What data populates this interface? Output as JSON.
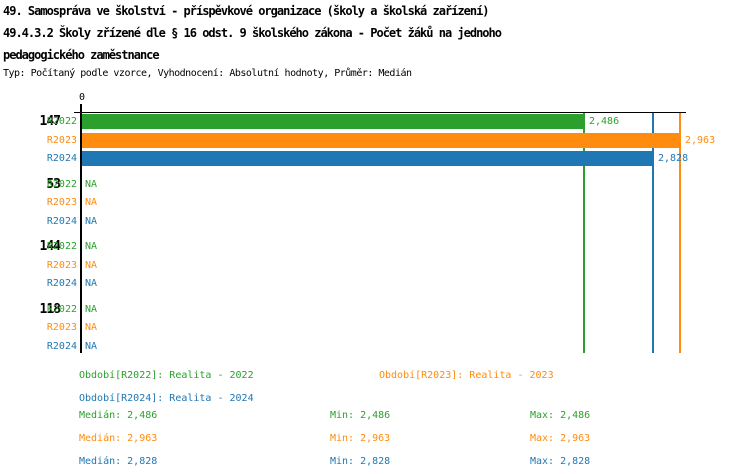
{
  "header": {
    "title_line1": "49. Samospráva ve školství - příspěvkové organizace (školy a školská zařízení)",
    "title_line2": "49.4.3.2 Školy zřízené dle § 16 odst. 9 školského zákona - Počet žáků na jednoho",
    "title_line3": "pedagogického zaměstnance",
    "subtitle": "Typ: Počítaný podle vzorce, Vyhodnocení: Absolutní hodnoty, Průměr: Medián"
  },
  "colors": {
    "R2022": "#2CA02C",
    "R2023": "#FF8C0E",
    "R2024": "#1F77B4",
    "axis": "#000000"
  },
  "chart_data": {
    "type": "bar",
    "orientation": "horizontal",
    "title": "49.4.3.2 Školy zřízené dle § 16 odst. 9 školského zákona - Počet žáků na jednoho pedagogického zaměstnance",
    "xlim": [
      0,
      3
    ],
    "axis_zero_label": "0",
    "na_label": "NA",
    "series_names": [
      "R2022",
      "R2023",
      "R2024"
    ],
    "groups": [
      {
        "label": "147",
        "rows": [
          {
            "series": "R2022",
            "value": 2.486,
            "display": "2,486"
          },
          {
            "series": "R2023",
            "value": 2.963,
            "display": "2,963"
          },
          {
            "series": "R2024",
            "value": 2.828,
            "display": "2,828"
          }
        ]
      },
      {
        "label": "53",
        "rows": [
          {
            "series": "R2022",
            "value": null,
            "display": "NA"
          },
          {
            "series": "R2023",
            "value": null,
            "display": "NA"
          },
          {
            "series": "R2024",
            "value": null,
            "display": "NA"
          }
        ]
      },
      {
        "label": "144",
        "rows": [
          {
            "series": "R2022",
            "value": null,
            "display": "NA"
          },
          {
            "series": "R2023",
            "value": null,
            "display": "NA"
          },
          {
            "series": "R2024",
            "value": null,
            "display": "NA"
          }
        ]
      },
      {
        "label": "118",
        "rows": [
          {
            "series": "R2022",
            "value": null,
            "display": "NA"
          },
          {
            "series": "R2023",
            "value": null,
            "display": "NA"
          },
          {
            "series": "R2024",
            "value": null,
            "display": "NA"
          }
        ]
      }
    ],
    "median_lines": [
      {
        "series": "R2022",
        "value": 2.486
      },
      {
        "series": "R2024",
        "value": 2.828
      },
      {
        "series": "R2023",
        "value": 2.963
      }
    ],
    "stats": [
      {
        "series": "R2022",
        "median": 2.486,
        "min": 2.486,
        "max": 2.486
      },
      {
        "series": "R2023",
        "median": 2.963,
        "min": 2.963,
        "max": 2.963
      },
      {
        "series": "R2024",
        "median": 2.828,
        "min": 2.828,
        "max": 2.828
      }
    ]
  },
  "legend": {
    "items": [
      {
        "series": "R2022",
        "text": "Období[R2022]: Realita - 2022"
      },
      {
        "series": "R2023",
        "text": "Období[R2023]: Realita - 2023"
      },
      {
        "series": "R2024",
        "text": "Období[R2024]: Realita - 2024"
      }
    ],
    "stats_rows": [
      {
        "series": "R2022",
        "median": "Medián: 2,486",
        "min": "Min: 2,486",
        "max": "Max: 2,486"
      },
      {
        "series": "R2023",
        "median": "Medián: 2,963",
        "min": "Min: 2,963",
        "max": "Max: 2,963"
      },
      {
        "series": "R2024",
        "median": "Medián: 2,828",
        "min": "Min: 2,828",
        "max": "Max: 2,828"
      }
    ]
  }
}
